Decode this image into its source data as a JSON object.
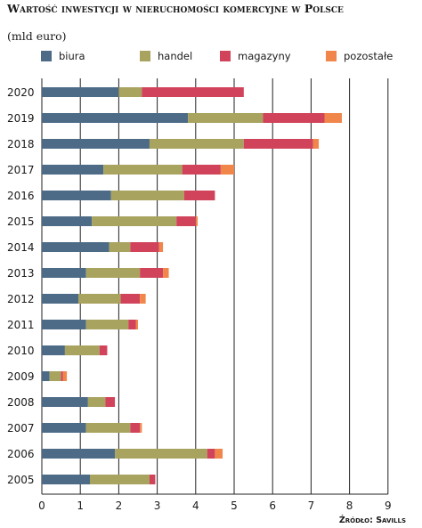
{
  "chart_data": {
    "type": "bar",
    "orientation": "horizontal",
    "stacked": true,
    "title": "Wartość inwestycji w nieruchomości komercyjne w Polsce",
    "subtitle": "(mld euro)",
    "source": "Źródło: Savills",
    "categories": [
      "2020",
      "2019",
      "2018",
      "2017",
      "2016",
      "2015",
      "2014",
      "2013",
      "2012",
      "2011",
      "2010",
      "2009",
      "2008",
      "2007",
      "2006",
      "2005"
    ],
    "series": [
      {
        "name": "biura",
        "color": "#4d6b87",
        "values": [
          2.0,
          3.8,
          2.8,
          1.6,
          1.8,
          1.3,
          1.75,
          1.15,
          0.95,
          1.15,
          0.6,
          0.2,
          1.2,
          1.15,
          1.9,
          1.25
        ]
      },
      {
        "name": "handel",
        "color": "#a8a35e",
        "values": [
          0.6,
          1.95,
          2.45,
          2.05,
          1.9,
          2.2,
          0.55,
          1.4,
          1.1,
          1.1,
          0.9,
          0.3,
          0.45,
          1.15,
          2.4,
          1.55
        ]
      },
      {
        "name": "magazyny",
        "color": "#d0435a",
        "values": [
          2.65,
          1.6,
          1.8,
          1.0,
          0.8,
          0.5,
          0.75,
          0.6,
          0.5,
          0.2,
          0.2,
          0.05,
          0.25,
          0.25,
          0.2,
          0.15
        ]
      },
      {
        "name": "pozostałe",
        "color": "#f0864a",
        "values": [
          0.0,
          0.45,
          0.15,
          0.35,
          0.0,
          0.05,
          0.1,
          0.15,
          0.15,
          0.05,
          0.0,
          0.1,
          0.0,
          0.05,
          0.2,
          0.0
        ]
      }
    ],
    "xlim": [
      0,
      9
    ],
    "xticks": [
      0,
      1,
      2,
      3,
      4,
      5,
      6,
      7,
      8,
      9
    ],
    "grid": "vertical",
    "legend": "top"
  }
}
